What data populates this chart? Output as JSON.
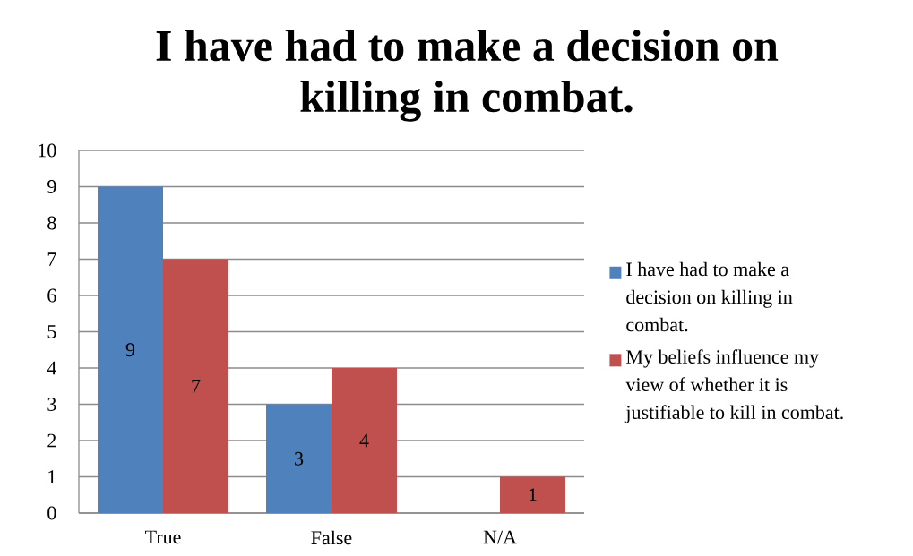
{
  "chart_data": {
    "type": "bar",
    "title": "I have had to make a decision on killing in combat.",
    "categories": [
      "True",
      "False",
      "N/A"
    ],
    "series": [
      {
        "name": "I have had to make a decision on killing in combat.",
        "color": "#4f81bd",
        "values": [
          9,
          3,
          0
        ],
        "value_labels": [
          "9",
          "3",
          null
        ]
      },
      {
        "name": "My beliefs influence my view of whether it is justifiable to kill in combat.",
        "color": "#c0504d",
        "values": [
          7,
          4,
          1
        ],
        "value_labels": [
          "7",
          "4",
          "1"
        ]
      }
    ],
    "ylim": [
      0,
      10
    ],
    "yticks": [
      0,
      1,
      2,
      3,
      4,
      5,
      6,
      7,
      8,
      9,
      10
    ],
    "grid": "y",
    "legend": "right"
  }
}
